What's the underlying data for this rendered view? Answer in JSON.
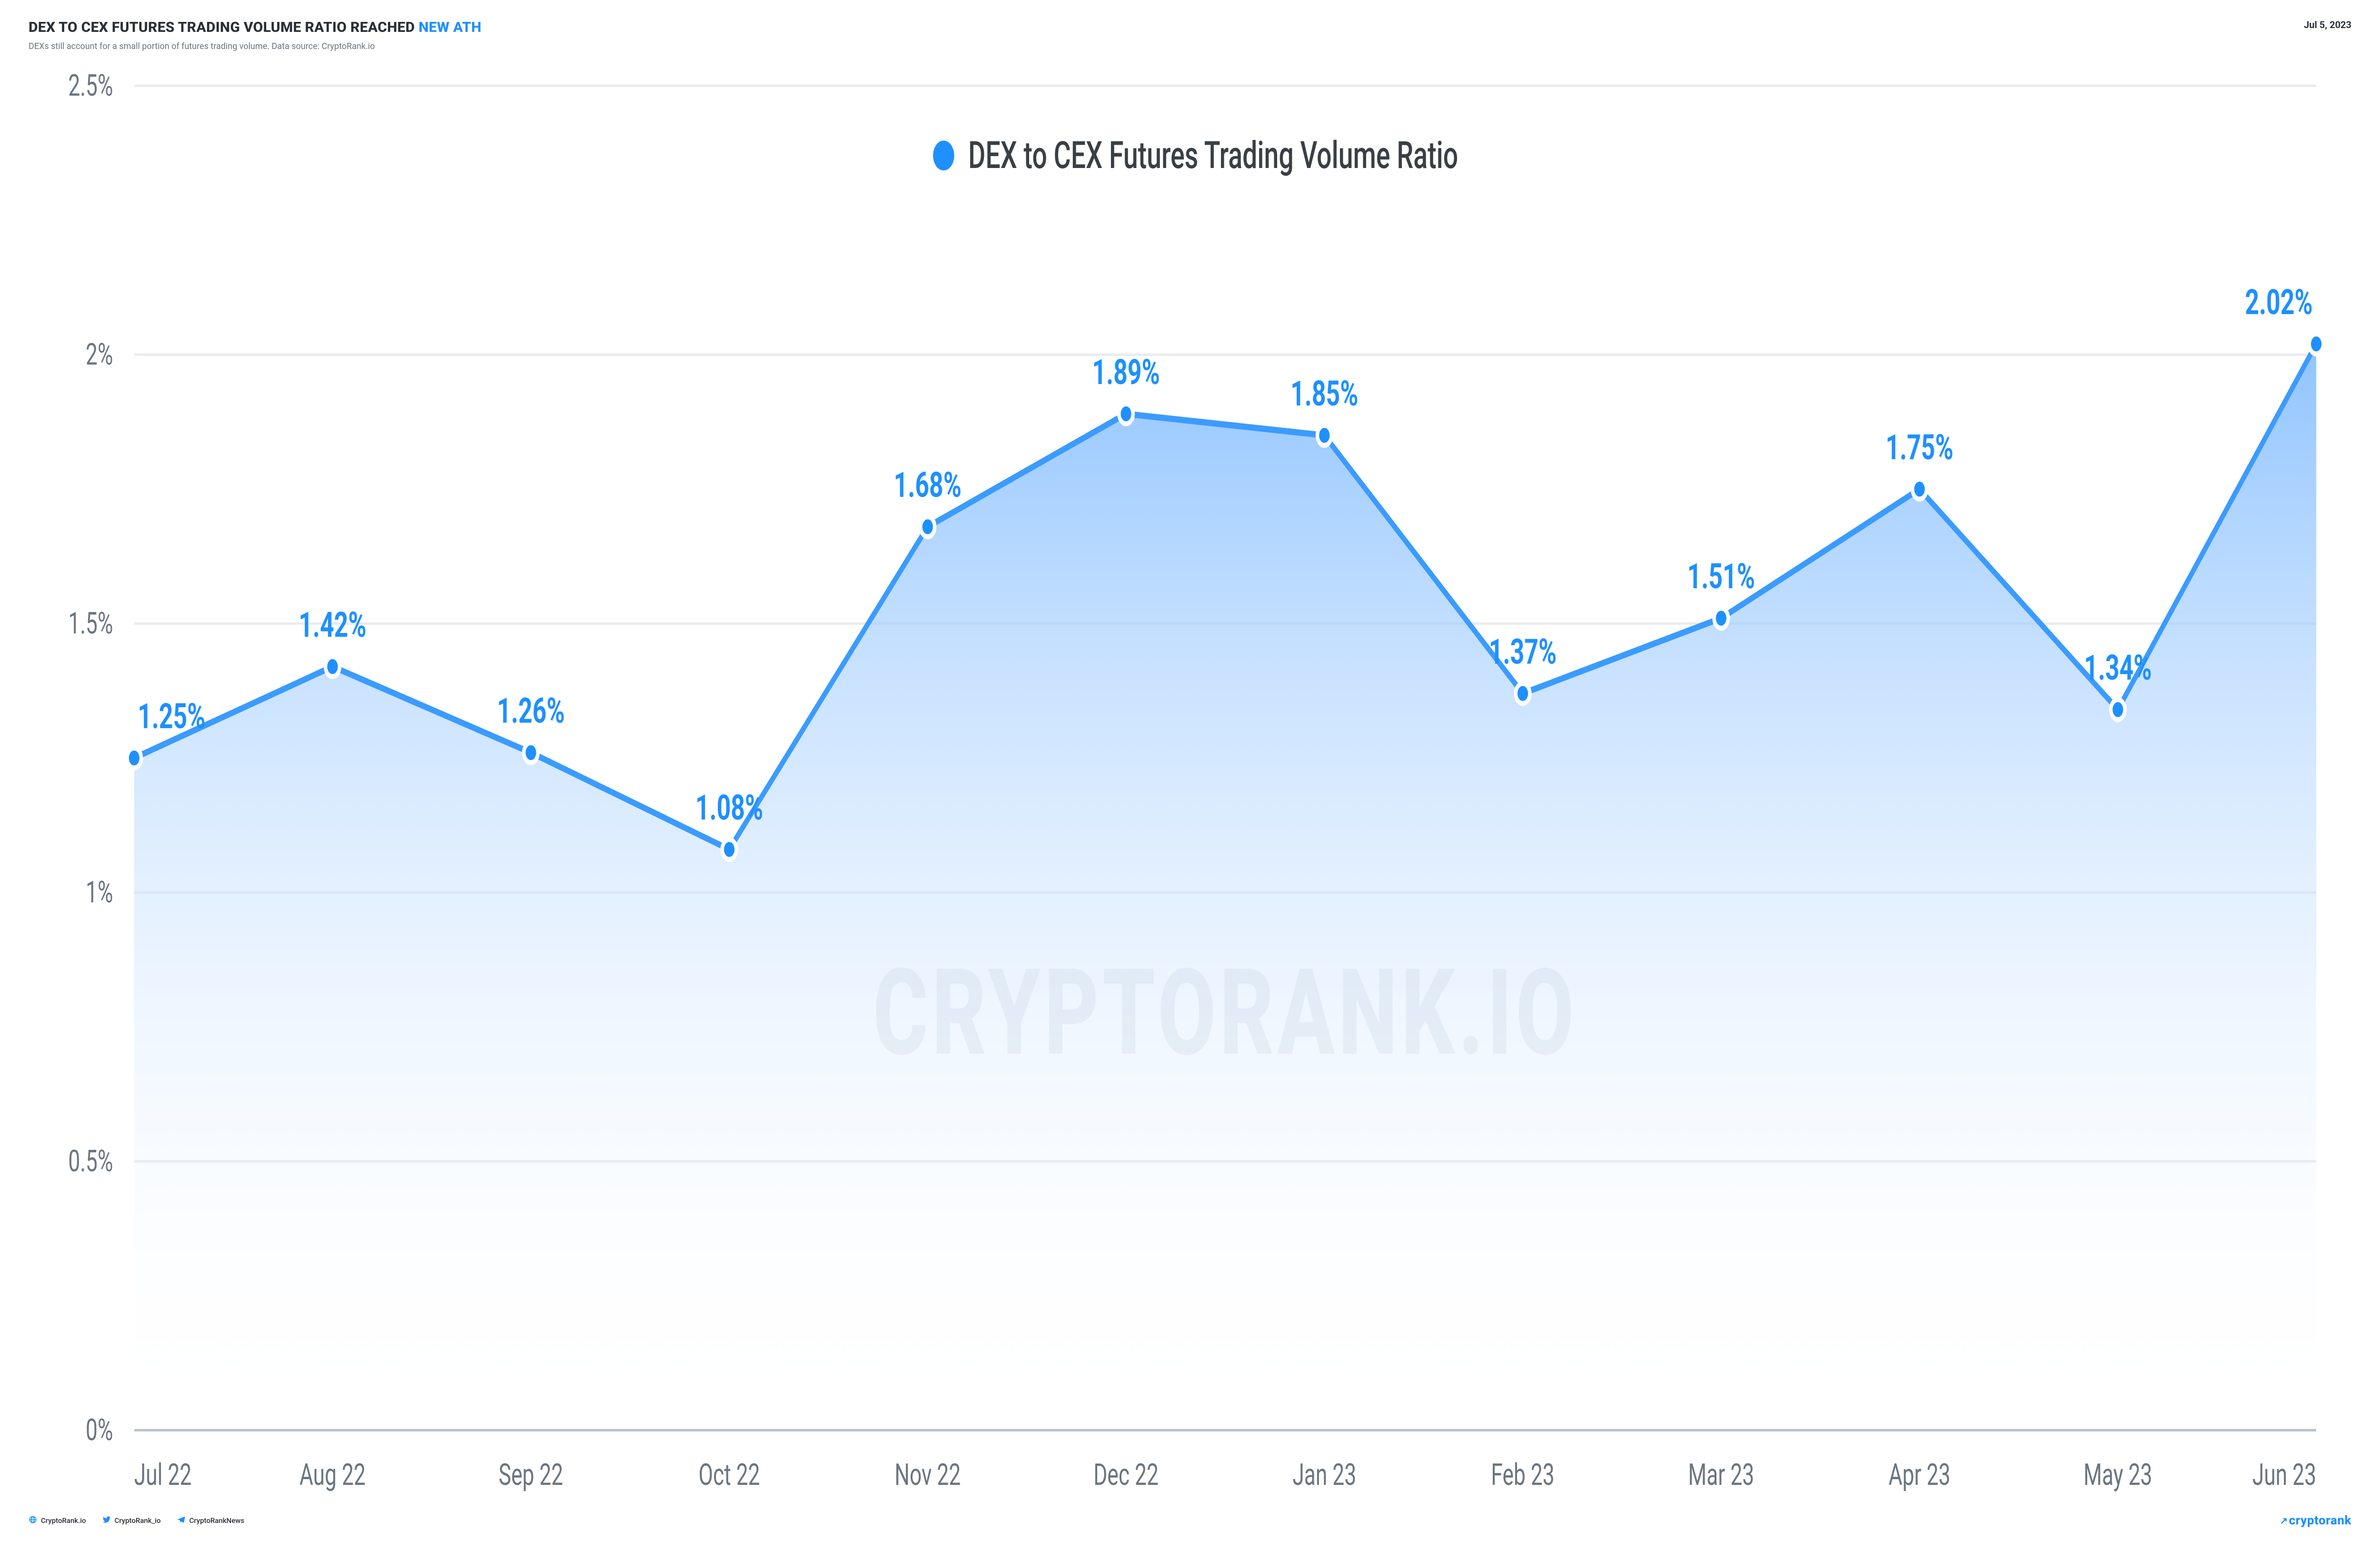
{
  "header": {
    "title_prefix": "DEX TO CEX FUTURES TRADING VOLUME RATIO REACHED ",
    "title_accent": "NEW ATH",
    "date": "Jul 5, 2023",
    "subtitle": "DEXs still account for a small portion of futures trading volume. Data source: CryptoRank.io"
  },
  "chart": {
    "type": "area",
    "legend_label": "DEX to CEX Futures Trading Volume Ratio",
    "categories": [
      "Jul 22",
      "Aug 22",
      "Sep 22",
      "Oct 22",
      "Nov 22",
      "Dec 22",
      "Jan 23",
      "Feb 23",
      "Mar 23",
      "Apr 23",
      "May 23",
      "Jun 23"
    ],
    "values": [
      1.25,
      1.42,
      1.26,
      1.08,
      1.68,
      1.89,
      1.85,
      1.37,
      1.51,
      1.75,
      1.34,
      2.02
    ],
    "point_labels": [
      "1.25%",
      "1.42%",
      "1.26%",
      "1.08%",
      "1.68%",
      "1.89%",
      "1.85%",
      "1.37%",
      "1.51%",
      "1.75%",
      "1.34%",
      "2.02%"
    ],
    "ymin": 0,
    "ymax": 2.5,
    "ytick_step": 0.5,
    "ytick_labels": [
      "0%",
      "0.5%",
      "1%",
      "1.5%",
      "2%",
      "2.5%"
    ],
    "line_color": "#3b9bff",
    "marker_color": "#1e90ff",
    "area_top_color": "#7cb9ff",
    "area_bottom_color": "#ffffff",
    "grid_color": "#e9ecef",
    "baseline_color": "#b9c0c8",
    "background_color": "#ffffff",
    "label_color": "#1e90ff",
    "axis_label_color": "#6c7580",
    "watermark_text": "CRYPTORANK.IO",
    "watermark_color": "#eef0f2",
    "label_fontsize": 14,
    "axis_fontsize": 12,
    "marker_radius": 4,
    "line_width": 2.5,
    "legend_fontsize": 15
  },
  "footer": {
    "socials": [
      {
        "icon": "globe-icon",
        "label": "CryptoRank.io"
      },
      {
        "icon": "twitter-icon",
        "label": "CryptoRank_io"
      },
      {
        "icon": "telegram-icon",
        "label": "CryptoRankNews"
      }
    ],
    "brand": "cryptorank"
  }
}
